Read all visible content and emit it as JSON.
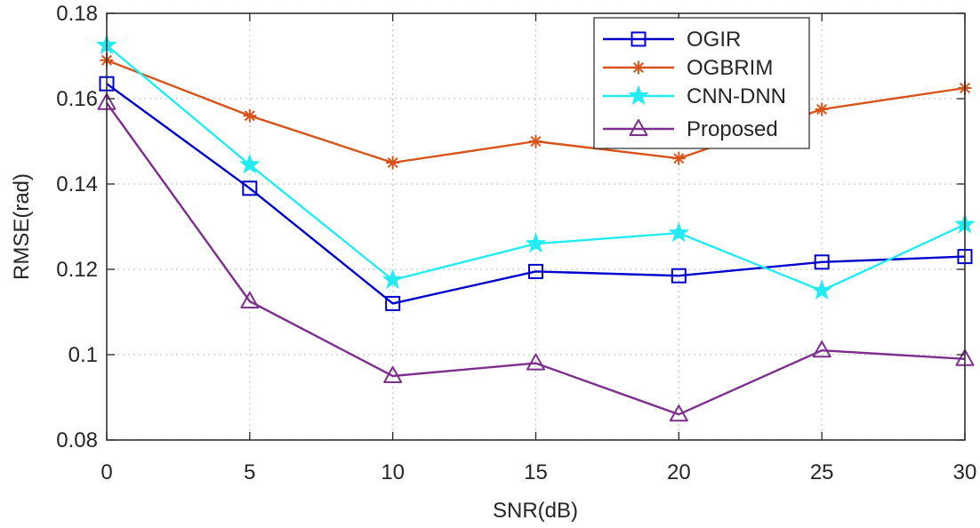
{
  "chart_data": {
    "type": "line",
    "title": "",
    "xlabel": "SNR(dB)",
    "ylabel": "RMSE(rad)",
    "xlim": [
      0,
      30
    ],
    "ylim": [
      0.08,
      0.18
    ],
    "x": [
      0,
      5,
      10,
      15,
      20,
      25,
      30
    ],
    "xticks": [
      0,
      5,
      10,
      15,
      20,
      25,
      30
    ],
    "xtick_labels": [
      "0",
      "5",
      "10",
      "15",
      "20",
      "25",
      "30"
    ],
    "yticks": [
      0.08,
      0.1,
      0.12,
      0.14,
      0.16,
      0.18
    ],
    "ytick_labels": [
      "0.08",
      "0.1",
      "0.12",
      "0.14",
      "0.16",
      "0.18"
    ],
    "grid": true,
    "legend_position": "top-right",
    "series": [
      {
        "name": "OGIR",
        "color": "#0000cc",
        "marker": "square",
        "values": [
          0.1635,
          0.139,
          0.112,
          0.1195,
          0.1185,
          0.1217,
          0.123
        ]
      },
      {
        "name": "OGBRIM",
        "color": "#d95319",
        "marker": "asterisk",
        "values": [
          0.169,
          0.156,
          0.145,
          0.15,
          0.146,
          0.1575,
          0.1625
        ]
      },
      {
        "name": "CNN-DNN",
        "color": "#22ecf2",
        "marker": "star",
        "values": [
          0.1725,
          0.1445,
          0.1175,
          0.126,
          0.1285,
          0.115,
          0.1305
        ]
      },
      {
        "name": "Proposed",
        "color": "#7e2f8e",
        "marker": "triangle",
        "values": [
          0.159,
          0.1125,
          0.095,
          0.098,
          0.086,
          0.101,
          0.099
        ]
      }
    ]
  }
}
